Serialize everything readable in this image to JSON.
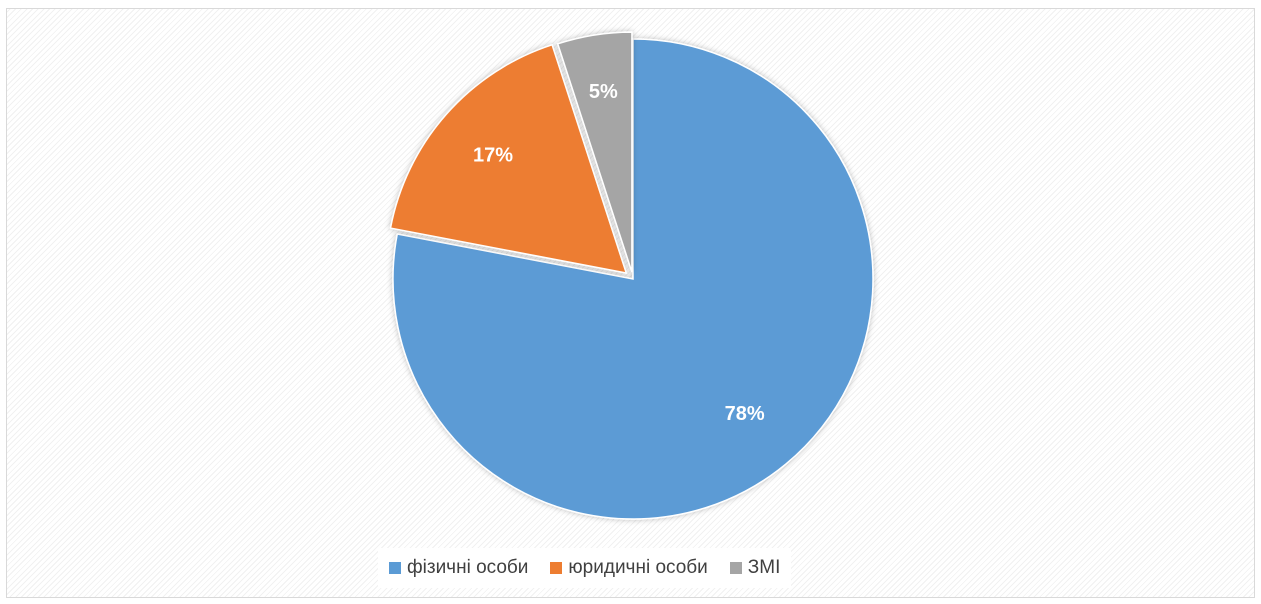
{
  "chart_data": {
    "type": "pie",
    "categories": [
      "фізичні особи",
      "юридичні особи",
      "ЗМІ"
    ],
    "values": [
      78,
      17,
      5
    ],
    "data_labels": [
      "78%",
      "17%",
      "5%"
    ],
    "colors": [
      "#5b9bd5",
      "#ed7d31",
      "#a5a5a5"
    ],
    "exploded": [
      "ЗМІ",
      "юридичні особи"
    ],
    "legend_position": "bottom",
    "title": ""
  },
  "legend": {
    "items": [
      {
        "label": "фізичні особи",
        "color": "#5b9bd5"
      },
      {
        "label": "юридичні особи",
        "color": "#ed7d31"
      },
      {
        "label": "ЗМІ",
        "color": "#a5a5a5"
      }
    ]
  }
}
